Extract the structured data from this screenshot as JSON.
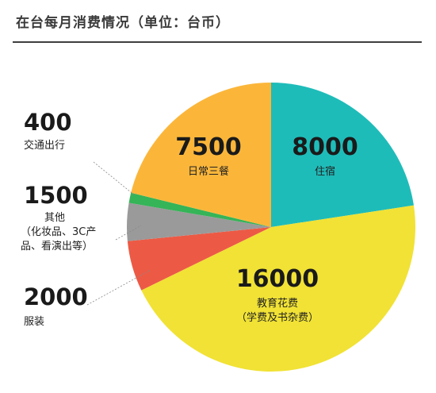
{
  "chart_data": {
    "type": "pie",
    "title": "在台每月消费情况（单位：台币）",
    "slices": [
      {
        "value": 8000,
        "value_label": "8000",
        "label": "住宿",
        "sublabel": "",
        "color": "#1ebcb9"
      },
      {
        "value": 16000,
        "value_label": "16000",
        "label": "教育花费",
        "sublabel": "（学费及书杂费）",
        "color": "#f1e235"
      },
      {
        "value": 2000,
        "value_label": "2000",
        "label": "服装",
        "sublabel": "",
        "color": "#ec5a45"
      },
      {
        "value": 1500,
        "value_label": "1500",
        "label": "其他",
        "sublabel": "（化妆品、3C产品、看演出等）",
        "color": "#9a9a9a"
      },
      {
        "value": 400,
        "value_label": "400",
        "label": "交通出行",
        "sublabel": "",
        "color": "#35b458"
      },
      {
        "value": 7500,
        "value_label": "7500",
        "label": "日常三餐",
        "sublabel": "",
        "color": "#fbb63a"
      }
    ],
    "legend": "none"
  },
  "side_labels": {
    "other_line1": "（化妆品、3C产",
    "other_line2": "品、看演出等）"
  }
}
